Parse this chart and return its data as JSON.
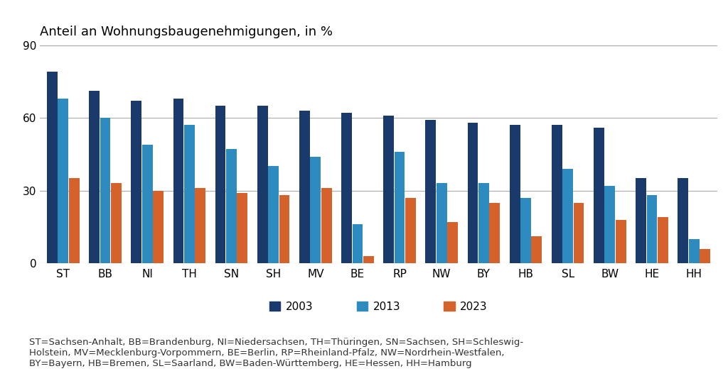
{
  "categories": [
    "ST",
    "BB",
    "NI",
    "TH",
    "SN",
    "SH",
    "MV",
    "BE",
    "RP",
    "NW",
    "BY",
    "HB",
    "SL",
    "BW",
    "HE",
    "HH"
  ],
  "values_2003": [
    79,
    71,
    67,
    68,
    65,
    65,
    63,
    62,
    61,
    59,
    58,
    57,
    57,
    56,
    35,
    35
  ],
  "values_2013": [
    68,
    60,
    49,
    57,
    47,
    40,
    44,
    16,
    46,
    33,
    33,
    27,
    39,
    32,
    28,
    10
  ],
  "values_2023": [
    35,
    33,
    30,
    31,
    29,
    28,
    31,
    3,
    27,
    17,
    25,
    11,
    25,
    18,
    19,
    6
  ],
  "color_2003": "#1a3a6b",
  "color_2013": "#2e8bc0",
  "color_2023": "#d4622a",
  "title": "Anteil an Wohnungsbaugenehmigungen, in %",
  "ylim": [
    0,
    90
  ],
  "yticks": [
    0,
    30,
    60,
    90
  ],
  "legend_labels": [
    "2003",
    "2013",
    "2023"
  ],
  "footnote_line1": "ST=Sachsen-Anhalt, BB=Brandenburg, NI=Niedersachsen, TH=Thüringen, SN=Sachsen, SH=Schleswig-",
  "footnote_line2": "Holstein, MV=Mecklenburg-Vorpommern, BE=Berlin, RP=Rheinland-Pfalz, NW=Nordrhein-Westfalen,",
  "footnote_line3": "BY=Bayern, HB=Bremen, SL=Saarland, BW=Baden-Württemberg, HE=Hessen, HH=Hamburg",
  "background_color": "#ffffff",
  "grid_color": "#aaaaaa",
  "title_fontsize": 13,
  "axis_fontsize": 11,
  "legend_fontsize": 11,
  "footnote_fontsize": 9.5
}
